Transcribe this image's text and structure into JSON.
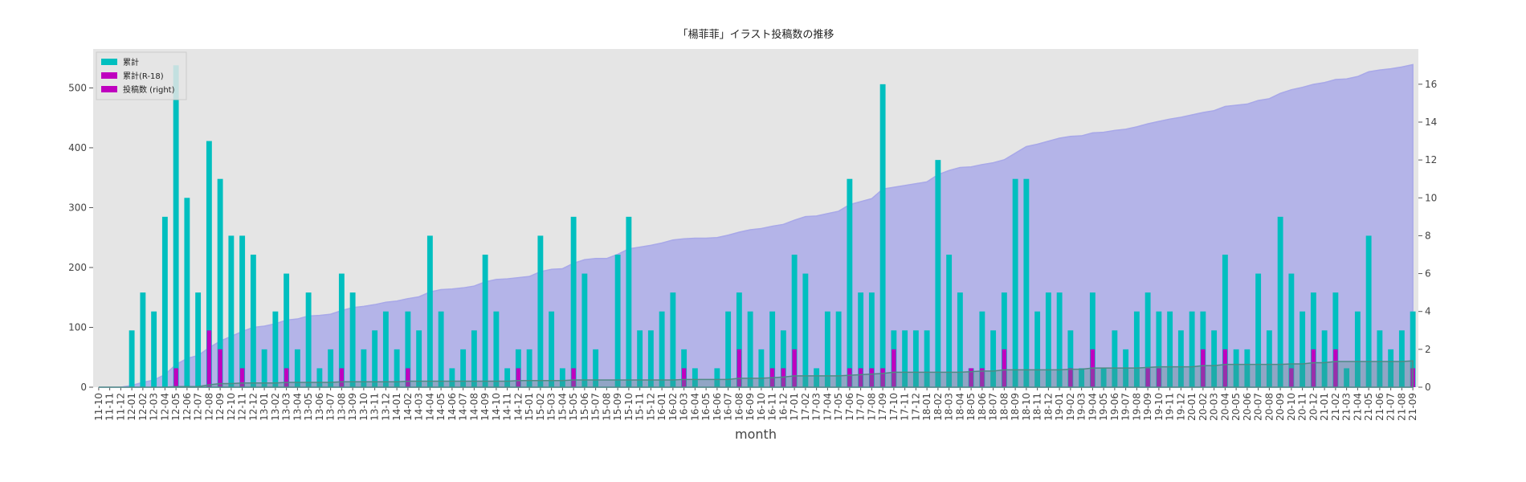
{
  "chart_data": {
    "type": "bar-area",
    "title": "「楊菲菲」イラスト投稿数の推移",
    "x_label": "month",
    "categories": [
      "11-10",
      "11-11",
      "11-12",
      "12-01",
      "12-02",
      "12-03",
      "12-04",
      "12-05",
      "12-06",
      "12-07",
      "12-08",
      "12-09",
      "12-10",
      "12-11",
      "12-12",
      "13-01",
      "13-02",
      "13-03",
      "13-04",
      "13-05",
      "13-06",
      "13-07",
      "13-08",
      "13-09",
      "13-10",
      "13-11",
      "13-12",
      "14-01",
      "14-02",
      "14-03",
      "14-04",
      "14-05",
      "14-06",
      "14-07",
      "14-08",
      "14-09",
      "14-10",
      "14-11",
      "14-12",
      "15-01",
      "15-02",
      "15-03",
      "15-04",
      "15-05",
      "15-06",
      "15-07",
      "15-08",
      "15-09",
      "15-10",
      "15-11",
      "15-12",
      "16-01",
      "16-02",
      "16-03",
      "16-04",
      "16-05",
      "16-06",
      "16-07",
      "16-08",
      "16-09",
      "16-10",
      "16-11",
      "16-12",
      "17-01",
      "17-02",
      "17-03",
      "17-04",
      "17-05",
      "17-06",
      "17-07",
      "17-08",
      "17-09",
      "17-10",
      "17-11",
      "17-12",
      "18-01",
      "18-02",
      "18-03",
      "18-04",
      "18-05",
      "18-06",
      "18-07",
      "18-08",
      "18-09",
      "18-10",
      "18-11",
      "18-12",
      "19-01",
      "19-02",
      "19-03",
      "19-04",
      "19-05",
      "19-06",
      "19-07",
      "19-08",
      "19-09",
      "19-10",
      "19-11",
      "19-12",
      "20-01",
      "20-02",
      "20-03",
      "20-04",
      "20-05",
      "20-06",
      "20-07",
      "20-08",
      "20-09",
      "20-10",
      "20-11",
      "20-12",
      "21-01",
      "21-02",
      "21-03",
      "21-04",
      "21-05",
      "21-06",
      "21-07",
      "21-08",
      "21-09"
    ],
    "series": [
      {
        "name": "累計",
        "color": "#00bfbf",
        "area_color": "#a8a8e8",
        "kind": "area",
        "values": [
          0,
          0,
          0,
          3,
          8,
          12,
          21,
          38,
          48,
          53,
          66,
          77,
          85,
          93,
          100,
          102,
          106,
          112,
          114,
          119,
          120,
          122,
          128,
          133,
          135,
          138,
          142,
          144,
          148,
          151,
          159,
          163,
          164,
          166,
          169,
          176,
          180,
          181,
          183,
          185,
          193,
          197,
          198,
          207,
          213,
          215,
          215,
          222,
          231,
          234,
          237,
          241,
          246,
          248,
          249,
          249,
          250,
          254,
          259,
          263,
          265,
          269,
          272,
          279,
          285,
          286,
          290,
          294,
          305,
          310,
          315,
          331,
          334,
          337,
          340,
          343,
          355,
          362,
          367,
          368,
          372,
          375,
          380,
          391,
          402,
          406,
          411,
          416,
          419,
          420,
          425,
          426,
          429,
          431,
          435,
          440,
          444,
          448,
          451,
          455,
          459,
          462,
          469,
          471,
          473,
          479,
          482,
          491,
          497,
          501,
          506,
          509,
          514,
          515,
          519,
          527,
          530,
          532,
          535,
          539
        ]
      },
      {
        "name": "累計(R-18)",
        "color": "#bf00bf",
        "area_color": "#4f8a84",
        "kind": "area",
        "values": [
          0,
          0,
          0,
          0,
          0,
          0,
          0,
          1,
          1,
          1,
          4,
          6,
          6,
          7,
          7,
          7,
          7,
          8,
          8,
          8,
          8,
          8,
          9,
          9,
          9,
          9,
          9,
          9,
          10,
          10,
          10,
          10,
          10,
          10,
          10,
          10,
          10,
          10,
          11,
          11,
          11,
          11,
          11,
          12,
          12,
          12,
          12,
          12,
          12,
          12,
          12,
          12,
          12,
          13,
          13,
          13,
          13,
          13,
          15,
          15,
          15,
          16,
          17,
          19,
          19,
          19,
          19,
          19,
          20,
          21,
          22,
          23,
          25,
          25,
          25,
          25,
          25,
          25,
          25,
          26,
          27,
          27,
          29,
          29,
          29,
          29,
          29,
          29,
          30,
          30,
          32,
          32,
          32,
          32,
          32,
          33,
          34,
          34,
          34,
          34,
          36,
          36,
          38,
          38,
          38,
          38,
          38,
          38,
          39,
          39,
          41,
          41,
          43,
          43,
          43,
          43,
          43,
          43,
          43,
          44
        ]
      },
      {
        "name": "投稿数 (right)",
        "color": "#bf00bf",
        "kind": "bar",
        "axis": "y2",
        "values": [
          0,
          0,
          0,
          0,
          0,
          0,
          0,
          1,
          0,
          0,
          3,
          2,
          0,
          1,
          0,
          0,
          0,
          1,
          0,
          0,
          0,
          0,
          1,
          0,
          0,
          0,
          0,
          0,
          1,
          0,
          0,
          0,
          0,
          0,
          0,
          0,
          0,
          0,
          1,
          0,
          0,
          0,
          0,
          1,
          0,
          0,
          0,
          0,
          0,
          0,
          0,
          0,
          0,
          1,
          0,
          0,
          0,
          0,
          2,
          0,
          0,
          1,
          1,
          2,
          0,
          0,
          0,
          0,
          1,
          1,
          1,
          1,
          2,
          0,
          0,
          0,
          0,
          0,
          0,
          1,
          1,
          0,
          2,
          0,
          0,
          0,
          0,
          0,
          1,
          0,
          2,
          0,
          0,
          0,
          0,
          1,
          1,
          0,
          0,
          0,
          2,
          0,
          2,
          0,
          0,
          0,
          0,
          0,
          1,
          0,
          2,
          0,
          2,
          0,
          0,
          0,
          0,
          0,
          0,
          1
        ]
      },
      {
        "color": "#00bfbf",
        "kind": "bar",
        "axis": "y2",
        "values": [
          0,
          0,
          0,
          3,
          5,
          4,
          9,
          17,
          10,
          5,
          13,
          11,
          8,
          8,
          7,
          2,
          4,
          6,
          2,
          5,
          1,
          2,
          6,
          5,
          2,
          3,
          4,
          2,
          4,
          3,
          8,
          4,
          1,
          2,
          3,
          7,
          4,
          1,
          2,
          2,
          8,
          4,
          1,
          9,
          6,
          2,
          0,
          7,
          9,
          3,
          3,
          4,
          5,
          2,
          1,
          0,
          1,
          4,
          5,
          4,
          2,
          4,
          3,
          7,
          6,
          1,
          4,
          4,
          11,
          5,
          5,
          16,
          3,
          3,
          3,
          3,
          12,
          7,
          5,
          1,
          4,
          3,
          5,
          11,
          11,
          4,
          5,
          5,
          3,
          1,
          5,
          1,
          3,
          2,
          4,
          5,
          4,
          4,
          3,
          4,
          4,
          3,
          7,
          2,
          2,
          6,
          3,
          9,
          6,
          4,
          5,
          3,
          5,
          1,
          4,
          8,
          3,
          2,
          3,
          4
        ]
      }
    ],
    "ylim": [
      0,
      565
    ],
    "yticks": [
      0,
      100,
      200,
      300,
      400,
      500
    ],
    "y2lim": [
      0,
      17.86
    ],
    "y2ticks": [
      0,
      2,
      4,
      6,
      8,
      10,
      12,
      14,
      16
    ],
    "grid": false,
    "legend": "upper left",
    "background": "#e5e5e5"
  }
}
